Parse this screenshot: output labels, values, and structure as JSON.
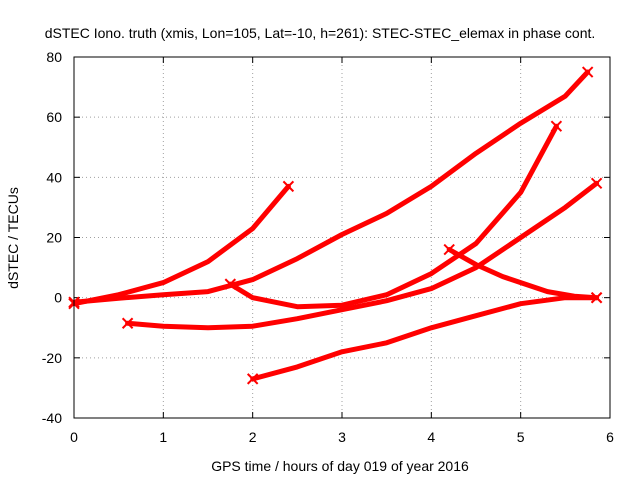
{
  "chart_data": {
    "type": "line",
    "title": "dSTEC Iono. truth (xmis, Lon=105, Lat=-10, h=261): STEC-STEC_elemax in phase cont.",
    "xlabel": "GPS time / hours of day 019 of year 2016",
    "ylabel": "dSTEC  / TECUs",
    "xlim": [
      0,
      6
    ],
    "ylim": [
      -40,
      80
    ],
    "x_ticks": [
      "0",
      "1",
      "2",
      "3",
      "4",
      "5",
      "6"
    ],
    "y_ticks": [
      "-40",
      "-20",
      "0",
      "20",
      "40",
      "60",
      "80"
    ],
    "grid": true,
    "color": "#ff0000",
    "series": [
      {
        "x": [
          0,
          0.5,
          1.0,
          1.5,
          2.0,
          2.4
        ],
        "values": [
          -2,
          1,
          5,
          12,
          23,
          37
        ]
      },
      {
        "x": [
          0,
          0.5,
          1.0,
          1.5,
          2.0,
          2.5,
          3.0,
          3.5,
          4.0,
          4.5,
          5.0,
          5.5,
          5.75
        ],
        "values": [
          -1.5,
          -0.2,
          1,
          2,
          6,
          13,
          21,
          28,
          37,
          48,
          58,
          67,
          75
        ]
      },
      {
        "x": [
          1.75,
          2.0,
          2.5,
          3.0,
          3.5,
          4.0,
          4.5,
          5.0,
          5.4
        ],
        "values": [
          4.5,
          0,
          -3,
          -2.5,
          1,
          8,
          18,
          35,
          57
        ]
      },
      {
        "x": [
          0.6,
          1.0,
          1.5,
          2.0,
          2.5,
          3.0,
          3.5,
          4.0,
          4.5,
          5.0,
          5.5,
          5.85
        ],
        "values": [
          -8.5,
          -9.5,
          -10,
          -9.5,
          -7,
          -4,
          -1,
          3,
          10,
          20,
          30,
          38
        ]
      },
      {
        "x": [
          4.2,
          4.5,
          4.8,
          5.0,
          5.3,
          5.6,
          5.85
        ],
        "values": [
          16,
          11,
          7,
          5,
          2,
          0.5,
          0
        ]
      },
      {
        "x": [
          2.0,
          2.5,
          3.0,
          3.5,
          4.0,
          4.5,
          5.0,
          5.5,
          5.85
        ],
        "values": [
          -27,
          -23,
          -18,
          -15,
          -10,
          -6,
          -2,
          0,
          0
        ]
      }
    ]
  }
}
